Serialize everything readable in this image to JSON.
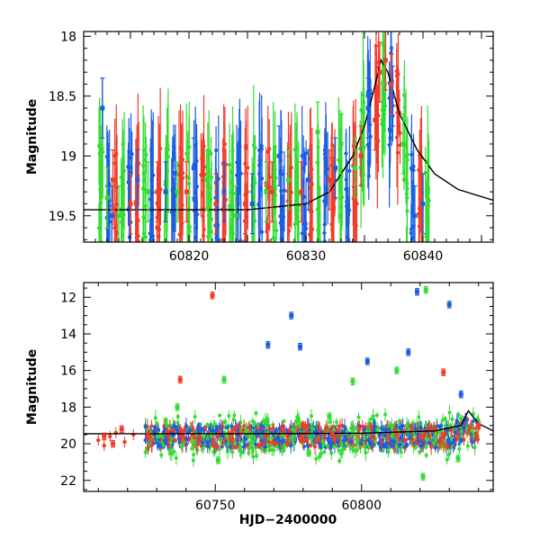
{
  "chart_data": [
    {
      "type": "scatter",
      "panel": "top",
      "title": "",
      "xlabel": "",
      "ylabel": "Magnitude",
      "xlim": [
        60811,
        60846
      ],
      "ylim": [
        19.72,
        17.96
      ],
      "y_inverted": true,
      "xticks": [
        60820,
        60830,
        60840
      ],
      "yticks": [
        18,
        18.5,
        19,
        19.5
      ],
      "colors": {
        "blue": "#1a5fe0",
        "green": "#33dd33",
        "red": "#f03c2a",
        "model": "#000000"
      },
      "series": [
        {
          "color": "green",
          "error_bars": true,
          "points": [
            [
              60813.0,
              19.35
            ],
            [
              60814.0,
              19.5
            ],
            [
              60816.5,
              19.3
            ],
            [
              60819.0,
              19.3
            ],
            [
              60821.5,
              19.2
            ],
            [
              60824.0,
              19.5
            ],
            [
              60826.6,
              19.3
            ],
            [
              60828.5,
              19.2
            ],
            [
              60831.0,
              18.8
            ],
            [
              60833.0,
              18.9
            ],
            [
              60834.2,
              19.1
            ],
            [
              60836.7,
              18.4
            ],
            [
              60838.3,
              18.9
            ],
            [
              60840.4,
              19.3
            ]
          ]
        },
        {
          "color": "blue",
          "error_bars": true,
          "points": [
            [
              60812.6,
              18.6
            ],
            [
              60813.4,
              19.5
            ],
            [
              60815.6,
              19.2
            ],
            [
              60818.0,
              19.3
            ],
            [
              60820.4,
              19.1
            ],
            [
              60823.0,
              19.3
            ],
            [
              60825.4,
              19.4
            ],
            [
              60827.7,
              19.0
            ],
            [
              60830.2,
              19.2
            ],
            [
              60832.5,
              19.1
            ],
            [
              60835.3,
              18.6
            ],
            [
              60837.4,
              18.5
            ],
            [
              60839.3,
              19.5
            ],
            [
              60840.0,
              19.4
            ]
          ]
        },
        {
          "color": "red",
          "error_bars": true,
          "points": [
            [
              60813.5,
              19.2
            ],
            [
              60815.0,
              19.4
            ],
            [
              60817.3,
              19.3
            ],
            [
              60819.8,
              19.3
            ],
            [
              60822.3,
              19.4
            ],
            [
              60824.8,
              19.4
            ],
            [
              60827.1,
              19.3
            ],
            [
              60829.6,
              19.3
            ],
            [
              60832.0,
              19.2
            ],
            [
              60834.7,
              19.0
            ],
            [
              60835.9,
              18.7
            ],
            [
              60836.3,
              18.3
            ],
            [
              60836.8,
              18.2
            ],
            [
              60837.3,
              18.4
            ]
          ]
        }
      ],
      "model_curve": {
        "x": [
          60811,
          60825,
          60830,
          60832,
          60834,
          60835,
          60835.8,
          60836.4,
          60837.0,
          60838.0,
          60839.5,
          60841,
          60843,
          60846
        ],
        "y": [
          19.45,
          19.45,
          19.4,
          19.3,
          19.0,
          18.75,
          18.45,
          18.2,
          18.3,
          18.65,
          18.95,
          19.15,
          19.28,
          19.37
        ]
      }
    },
    {
      "type": "scatter",
      "panel": "bottom",
      "title": "",
      "xlabel": "HJD−2400000",
      "ylabel": "Magnitude",
      "xlim": [
        60705,
        60845
      ],
      "ylim": [
        22.6,
        11.2
      ],
      "y_inverted": true,
      "xticks": [
        60750,
        60800
      ],
      "yticks": [
        12,
        14,
        16,
        18,
        20,
        22
      ],
      "colors": {
        "blue": "#1a5fe0",
        "green": "#33dd33",
        "red": "#f03c2a",
        "model": "#000000"
      },
      "series": [
        {
          "color": "red",
          "error_bars": true,
          "points": [
            [
              60712,
              19.6
            ],
            [
              60715,
              20.0
            ],
            [
              60718,
              19.2
            ],
            [
              60727,
              19.6
            ],
            [
              60738,
              16.5
            ],
            [
              60749,
              11.9
            ],
            [
              60780,
              19.0
            ],
            [
              60790,
              19.5
            ],
            [
              60828,
              16.1
            ],
            [
              60840,
              19.0
            ]
          ]
        },
        {
          "color": "blue",
          "error_bars": true,
          "points": [
            [
              60768,
              14.6
            ],
            [
              60776,
              13.0
            ],
            [
              60779,
              14.7
            ],
            [
              60802,
              15.5
            ],
            [
              60816,
              15.0
            ],
            [
              60819,
              11.7
            ],
            [
              60830,
              12.4
            ],
            [
              60834,
              17.3
            ]
          ]
        },
        {
          "color": "green",
          "error_bars": true,
          "points": [
            [
              60737,
              18.0
            ],
            [
              60753,
              16.5
            ],
            [
              60789,
              18.5
            ],
            [
              60797,
              16.6
            ],
            [
              60812,
              16.0
            ],
            [
              60822,
              11.6
            ],
            [
              60821,
              21.8
            ],
            [
              60833,
              20.8
            ],
            [
              60751,
              20.9
            ],
            [
              60782,
              20.5
            ]
          ]
        }
      ],
      "model_curve": {
        "x": [
          60705,
          60760,
          60800,
          60825,
          60834,
          60836.5,
          60840,
          60845
        ],
        "y": [
          19.45,
          19.45,
          19.42,
          19.3,
          19.0,
          18.2,
          18.9,
          19.3
        ]
      }
    }
  ]
}
